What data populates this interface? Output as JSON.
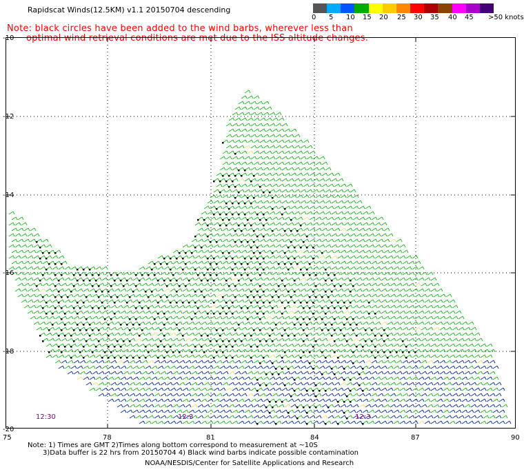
{
  "header": {
    "title": "Rapidscat Winds(12.5KM) v1.1 20150704 descending",
    "note_line1": "Note: black circles have been added to the wind barbs, wherever less than",
    "note_line2": "optimal wind retrieval conditions are met due to the ISS altitude changes."
  },
  "legend": {
    "colors": [
      "#555555",
      "#00aaff",
      "#0055ff",
      "#00aa00",
      "#ffff00",
      "#ffcc00",
      "#ff8800",
      "#ff0000",
      "#aa0000",
      "#884400",
      "#ff00ff",
      "#aa00cc",
      "#440077"
    ],
    "labels": [
      "0",
      "5",
      "10",
      "15",
      "20",
      "25",
      "30",
      "35",
      "40",
      "45",
      ">50 knots"
    ]
  },
  "map": {
    "lat_labels": [
      "-10",
      "-12",
      "-14",
      "-16",
      "-18",
      "-20"
    ],
    "lon_labels": [
      "75",
      "78",
      "81",
      "84",
      "87",
      "90"
    ],
    "time_labels": [
      "12:30",
      "12:3",
      "12:3"
    ]
  },
  "footer": {
    "note1": "Note: 1) Times are GMT 2)Times along bottom correspond to measurement at ~10S",
    "note2": "3)Data buffer is 22 hrs from 20150704 4) Black wind barbs indicate possible contamination",
    "credit": "NOAA/NESDIS/Center for Satellite Applications and Research"
  }
}
